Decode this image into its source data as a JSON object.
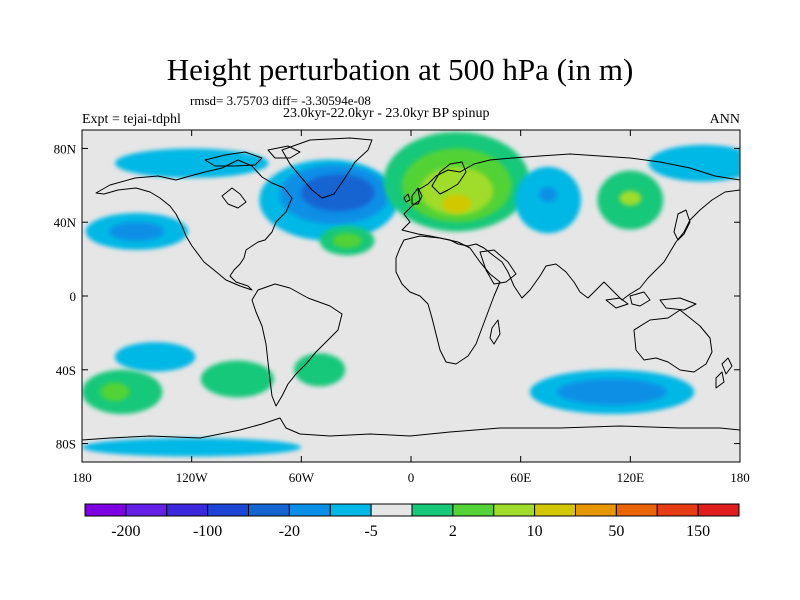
{
  "title": "Height perturbation at 500 hPa (in m)",
  "stats_line": "rmsd= 3.75703 diff= -3.30594e-08",
  "period_line": "23.0kyr-22.0kyr - 23.0kyr BP spinup",
  "experiment": "Expt = tejai-tdphl",
  "season": "ANN",
  "map": {
    "projection": "cylindrical equidistant",
    "lon_range": [
      -180,
      180
    ],
    "lat_range": [
      -90,
      90
    ],
    "ocean_land_fill": "#e6e6e6",
    "lat_ticks": [
      {
        "value": 80,
        "label": "80N"
      },
      {
        "value": 40,
        "label": "40N"
      },
      {
        "value": 0,
        "label": "0"
      },
      {
        "value": -40,
        "label": "40S"
      },
      {
        "value": -80,
        "label": "80S"
      }
    ],
    "lon_ticks": [
      {
        "value": -180,
        "label": "180"
      },
      {
        "value": -120,
        "label": "120W"
      },
      {
        "value": -60,
        "label": "60W"
      },
      {
        "value": 0,
        "label": "0"
      },
      {
        "value": 60,
        "label": "60E"
      },
      {
        "value": 120,
        "label": "120E"
      },
      {
        "value": 180,
        "label": "180"
      }
    ],
    "anomaly_regions": [
      {
        "name": "arctic-canada",
        "lon": -120,
        "lat": 72,
        "rlon": 42,
        "rlat": 8,
        "color": "#00b8e5"
      },
      {
        "name": "north-atlantic-low-outer",
        "lon": -45,
        "lat": 52,
        "rlon": 38,
        "rlat": 22,
        "color": "#00b8e5"
      },
      {
        "name": "north-atlantic-low-mid",
        "lon": -42,
        "lat": 55,
        "rlon": 30,
        "rlat": 16,
        "color": "#0a8fe6"
      },
      {
        "name": "north-atlantic-low-core",
        "lon": -40,
        "lat": 56,
        "rlon": 20,
        "rlat": 10,
        "color": "#1464d2"
      },
      {
        "name": "pacific-low",
        "lon": -150,
        "lat": 35,
        "rlon": 28,
        "rlat": 10,
        "color": "#00b8e5"
      },
      {
        "name": "pacific-low-core",
        "lon": -150,
        "lat": 35,
        "rlon": 15,
        "rlat": 5,
        "color": "#0a8fe6"
      },
      {
        "name": "west-pacific-high",
        "lon": 160,
        "lat": 72,
        "rlon": 30,
        "rlat": 10,
        "color": "#00b8e5"
      },
      {
        "name": "europe-high-outer",
        "lon": 25,
        "lat": 62,
        "rlon": 40,
        "rlat": 27,
        "color": "#18c87a"
      },
      {
        "name": "europe-high-mid",
        "lon": 25,
        "lat": 60,
        "rlon": 30,
        "rlat": 20,
        "color": "#52d236"
      },
      {
        "name": "europe-high-inner",
        "lon": 25,
        "lat": 57,
        "rlon": 20,
        "rlat": 13,
        "color": "#a0dc2a"
      },
      {
        "name": "europe-high-core",
        "lon": 25,
        "lat": 50,
        "rlon": 8,
        "rlat": 5,
        "color": "#d2c800"
      },
      {
        "name": "siberia-low",
        "lon": 75,
        "lat": 52,
        "rlon": 18,
        "rlat": 18,
        "color": "#00b8e5"
      },
      {
        "name": "siberia-low-core",
        "lon": 75,
        "lat": 55,
        "rlon": 5,
        "rlat": 4,
        "color": "#0a8fe6"
      },
      {
        "name": "east-asia-high",
        "lon": 120,
        "lat": 52,
        "rlon": 18,
        "rlat": 16,
        "color": "#18c87a"
      },
      {
        "name": "east-asia-high-core",
        "lon": 120,
        "lat": 53,
        "rlon": 6,
        "rlat": 4,
        "color": "#a0dc2a"
      },
      {
        "name": "mid-atlantic-high",
        "lon": -35,
        "lat": 30,
        "rlon": 15,
        "rlat": 8,
        "color": "#18c87a"
      },
      {
        "name": "mid-atlantic-high-core",
        "lon": -35,
        "lat": 30,
        "rlon": 8,
        "rlat": 4,
        "color": "#52d236"
      },
      {
        "name": "south-pacific-low",
        "lon": -140,
        "lat": -33,
        "rlon": 22,
        "rlat": 8,
        "color": "#00b8e5"
      },
      {
        "name": "south-pacific-high",
        "lon": -158,
        "lat": -52,
        "rlon": 22,
        "rlat": 12,
        "color": "#18c87a"
      },
      {
        "name": "south-pacific-high-core",
        "lon": -162,
        "lat": -52,
        "rlon": 8,
        "rlat": 5,
        "color": "#52d236"
      },
      {
        "name": "southeast-pacific-high",
        "lon": -95,
        "lat": -45,
        "rlon": 20,
        "rlat": 10,
        "color": "#18c87a"
      },
      {
        "name": "south-atlantic-high",
        "lon": -50,
        "lat": -40,
        "rlon": 14,
        "rlat": 9,
        "color": "#18c87a"
      },
      {
        "name": "south-indian-low",
        "lon": 110,
        "lat": -52,
        "rlon": 45,
        "rlat": 12,
        "color": "#00b8e5"
      },
      {
        "name": "south-indian-low-core",
        "lon": 110,
        "lat": -52,
        "rlon": 30,
        "rlat": 7,
        "color": "#0a8fe6"
      },
      {
        "name": "antarctic-low",
        "lon": -120,
        "lat": -82,
        "rlon": 60,
        "rlat": 5,
        "color": "#00b8e5"
      }
    ]
  },
  "colorbar": {
    "colors": [
      "#7d00e0",
      "#6420e6",
      "#3c28dc",
      "#1e46d6",
      "#1464d2",
      "#0a8fe6",
      "#00b8e5",
      "#e6e6e6",
      "#18c87a",
      "#52d236",
      "#a0dc2a",
      "#d2c800",
      "#e69600",
      "#ea6400",
      "#e63c14",
      "#e01e1e"
    ],
    "tick_labels": [
      "-200",
      "-100",
      "-20",
      "-5",
      "2",
      "10",
      "50",
      "150"
    ]
  }
}
